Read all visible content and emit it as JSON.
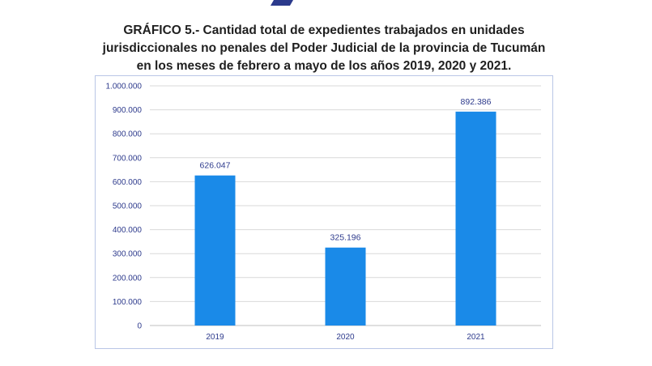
{
  "chart_data": {
    "type": "bar",
    "title_lines": [
      "GRÁFICO 5.- Cantidad total de expedientes trabajados en unidades",
      "jurisdiccionales no penales del Poder Judicial de la provincia de Tucumán",
      "en los meses de febrero a mayo de los años 2019, 2020 y 2021."
    ],
    "categories": [
      "2019",
      "2020",
      "2021"
    ],
    "values": [
      626047,
      325196,
      892386
    ],
    "value_labels": [
      "626.047",
      "325.196",
      "892.386"
    ],
    "ylim": [
      0,
      1000000
    ],
    "yticks": [
      0,
      100000,
      200000,
      300000,
      400000,
      500000,
      600000,
      700000,
      800000,
      900000,
      1000000
    ],
    "ytick_labels": [
      "0",
      "100.000",
      "200.000",
      "300.000",
      "400.000",
      "500.000",
      "600.000",
      "700.000",
      "800.000",
      "900.000",
      "1.000.000"
    ],
    "grid": true,
    "legend": "none",
    "colors": {
      "bar": "#1a8ae8",
      "grid": "#d9d9d9",
      "text": "#2d3a8c"
    }
  }
}
